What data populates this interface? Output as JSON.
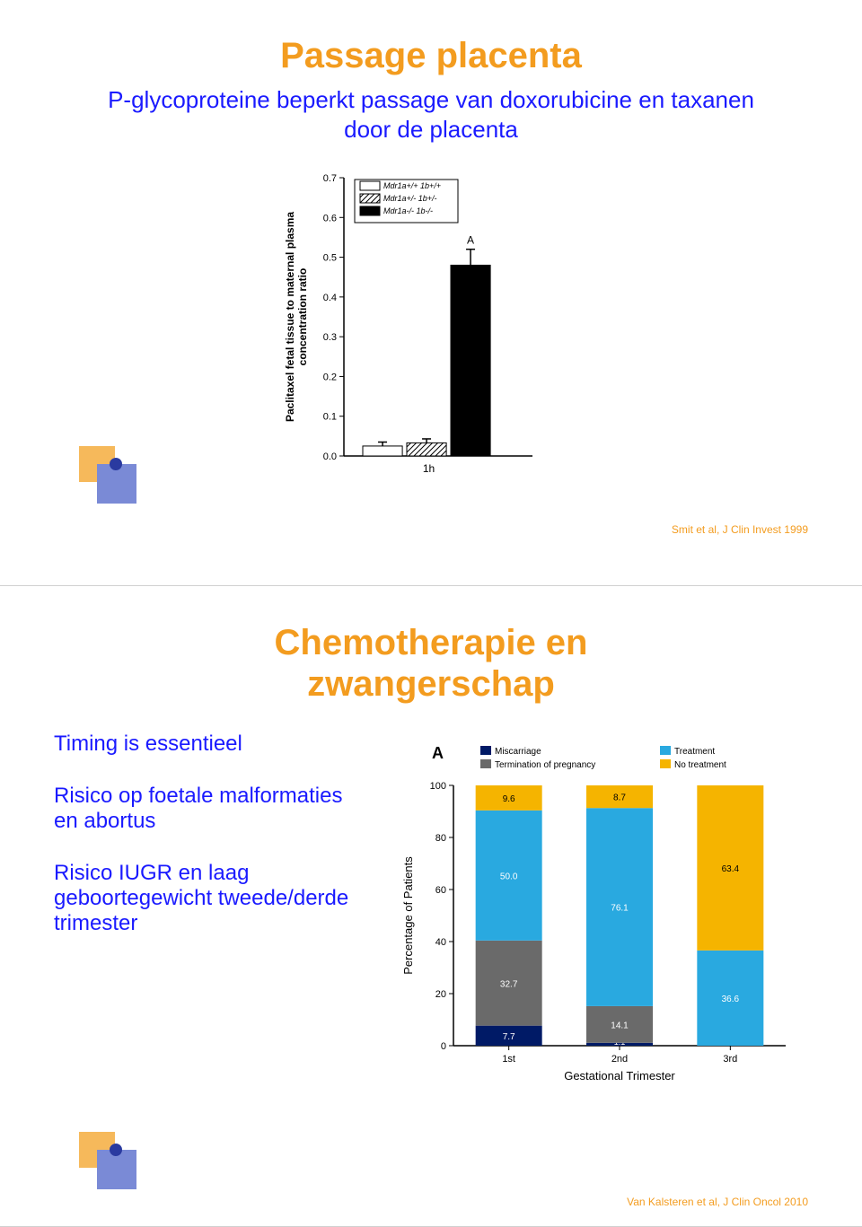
{
  "slide1": {
    "title": "Passage placenta",
    "title_fontsize": 40,
    "subtitle": "P-glycoproteine beperkt passage van doxorubicine en taxanen door de placenta",
    "subtitle_fontsize": 26,
    "citation": "Smit et al, J Clin Invest 1999",
    "chart": {
      "type": "bar",
      "ylabel": "Paclitaxel fetal tissue to maternal plasma\nconcentration ratio",
      "xlabel": "1h",
      "ylim": [
        0.0,
        0.7
      ],
      "ytick_step": 0.1,
      "yticks": [
        "0.0",
        "0.1",
        "0.2",
        "0.3",
        "0.4",
        "0.5",
        "0.6",
        "0.7"
      ],
      "label_fontsize": 11,
      "series": [
        {
          "label": "Mdr1a+/+ 1b+/+",
          "value": 0.025,
          "fill": "white",
          "err": 0.01
        },
        {
          "label": "Mdr1a+/- 1b+/-",
          "value": 0.033,
          "fill": "hatch",
          "err": 0.01
        },
        {
          "label": "Mdr1a-/- 1b-/-",
          "value": 0.48,
          "fill": "black",
          "err": 0.04,
          "annot": "A"
        }
      ],
      "bar_width": 0.25,
      "background_color": "#ffffff",
      "axis_color": "#000000"
    }
  },
  "slide2": {
    "title": "Chemotherapie en zwangerschap",
    "title_fontsize": 40,
    "bullets": [
      "Timing is essentieel",
      "Risico op foetale malformaties en abortus",
      "Risico IUGR en laag geboortegewicht tweede/derde trimester"
    ],
    "bullet_fontsize": 24,
    "citation": "Van Kalsteren et al, J Clin Oncol 2010",
    "chart": {
      "type": "stacked-bar",
      "panel_label": "A",
      "ylabel": "Percentage of Patients",
      "xlabel": "Gestational Trimester",
      "categories": [
        "1st",
        "2nd",
        "3rd"
      ],
      "ylim": [
        0,
        100
      ],
      "ytick_step": 20,
      "yticks": [
        "0",
        "20",
        "40",
        "60",
        "80",
        "100"
      ],
      "legend": [
        {
          "label": "Miscarriage",
          "color": "#001a66"
        },
        {
          "label": "Termination of pregnancy",
          "color": "#6a6a6a"
        },
        {
          "label": "Treatment",
          "color": "#29a9e0"
        },
        {
          "label": "No treatment",
          "color": "#f5b400"
        }
      ],
      "stacks": [
        [
          {
            "key": "Miscarriage",
            "value": 7.7,
            "label": "7.7",
            "color": "#001a66",
            "text": "#ffffff"
          },
          {
            "key": "Termination",
            "value": 32.7,
            "label": "32.7",
            "color": "#6a6a6a",
            "text": "#ffffff"
          },
          {
            "key": "Treatment",
            "value": 50.0,
            "label": "50.0",
            "color": "#29a9e0",
            "text": "#ffffff"
          },
          {
            "key": "No treatment",
            "value": 9.6,
            "label": "9.6",
            "color": "#f5b400",
            "text": "#000000"
          }
        ],
        [
          {
            "key": "Miscarriage",
            "value": 1.1,
            "label": "1.1",
            "color": "#001a66",
            "text": "#ffffff"
          },
          {
            "key": "Termination",
            "value": 14.1,
            "label": "14.1",
            "color": "#6a6a6a",
            "text": "#ffffff"
          },
          {
            "key": "Treatment",
            "value": 76.1,
            "label": "76.1",
            "color": "#29a9e0",
            "text": "#ffffff"
          },
          {
            "key": "No treatment",
            "value": 8.7,
            "label": "8.7",
            "color": "#f5b400",
            "text": "#000000"
          }
        ],
        [
          {
            "key": "Treatment",
            "value": 36.6,
            "label": "36.6",
            "color": "#29a9e0",
            "text": "#ffffff"
          },
          {
            "key": "No treatment",
            "value": 63.4,
            "label": "63.4",
            "color": "#f5b400",
            "text": "#000000"
          }
        ]
      ],
      "label_fontsize": 11,
      "background_color": "#ffffff",
      "axis_color": "#000000",
      "bar_width": 0.6
    }
  }
}
